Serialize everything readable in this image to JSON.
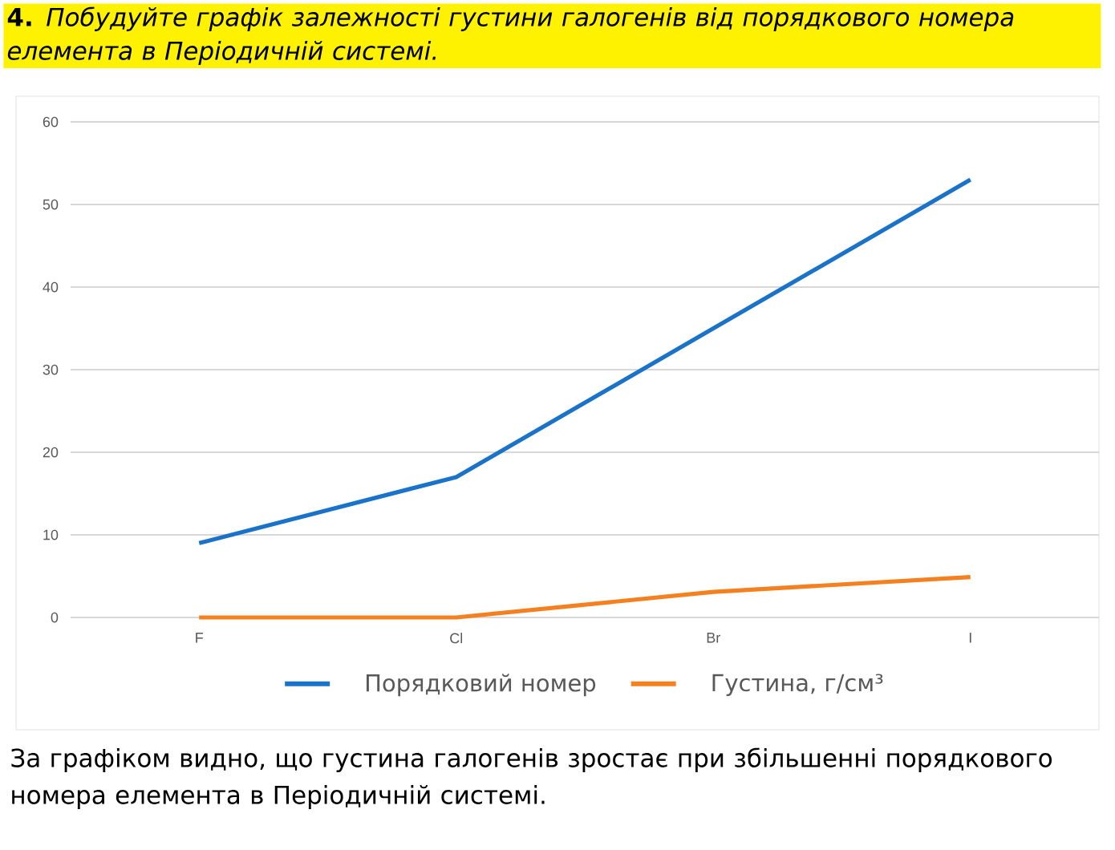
{
  "chart_data": {
    "type": "line",
    "title": "**4.** *Побудуйте графік залежності густини галогенів від порядкового номера елемента в Періодичній системі.*",
    "categories": [
      "F",
      "Cl",
      "Br",
      "I"
    ],
    "series": [
      {
        "name": "Порядковий номер",
        "color": "#1a73c9",
        "values": [
          9,
          17,
          35,
          53
        ]
      },
      {
        "name": "Густина, г/см³",
        "color": "#f4801f",
        "values": [
          0,
          0,
          3.1,
          4.9
        ]
      }
    ],
    "ylim": [
      0,
      60
    ],
    "yticks": [
      0,
      10,
      20,
      30,
      40,
      50,
      60
    ],
    "grid": "y",
    "legend": "bottom",
    "annotations": [
      "За графіком видно, що густина галогенів зростає при збільшенні порядкового номера елемента в Періодичній системі."
    ]
  }
}
